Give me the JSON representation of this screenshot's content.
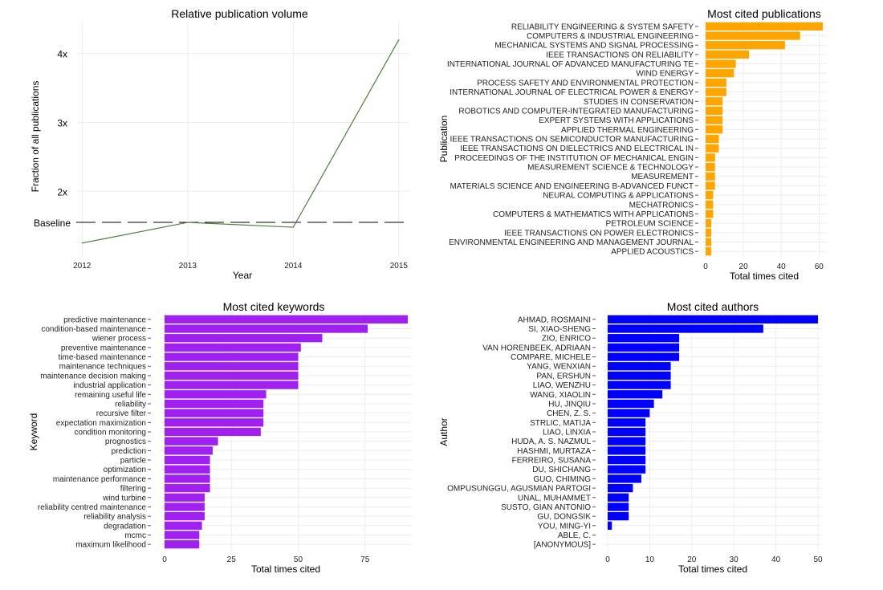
{
  "chart_data": [
    {
      "type": "line",
      "title": "Relative publication volume",
      "xlabel": "Year",
      "ylabel": "Fraction of all publications",
      "x": [
        2012,
        2013,
        2014,
        2015
      ],
      "y": [
        1.25,
        1.55,
        1.48,
        4.2
      ],
      "xlim": [
        2011.96,
        2015.1
      ],
      "ylim": [
        1.05,
        4.45
      ],
      "ytick_values": [
        2,
        3,
        4
      ],
      "ytick_labels": [
        "2x",
        "3x",
        "4x"
      ],
      "baseline": {
        "label": "Baseline",
        "value": 1.55
      },
      "colors": {
        "line": "#4a7f3a",
        "baseline": "#000000"
      }
    },
    {
      "type": "bar",
      "orientation": "horizontal",
      "title": "Most cited publications",
      "xlabel": "Total times cited",
      "ylabel": "Publication",
      "categories": [
        "RELIABILITY ENGINEERING & SYSTEM SAFETY",
        "COMPUTERS & INDUSTRIAL ENGINEERING",
        "MECHANICAL SYSTEMS AND SIGNAL PROCESSING",
        "IEEE TRANSACTIONS ON RELIABILITY",
        "INTERNATIONAL JOURNAL OF ADVANCED MANUFACTURING TE",
        "WIND ENERGY",
        "PROCESS SAFETY AND ENVIRONMENTAL PROTECTION",
        "INTERNATIONAL JOURNAL OF ELECTRICAL POWER & ENERGY",
        "STUDIES IN CONSERVATION",
        "ROBOTICS AND COMPUTER-INTEGRATED MANUFACTURING",
        "EXPERT SYSTEMS WITH APPLICATIONS",
        "APPLIED THERMAL ENGINEERING",
        "IEEE TRANSACTIONS ON SEMICONDUCTOR MANUFACTURING",
        "IEEE TRANSACTIONS ON DIELECTRICS AND ELECTRICAL IN",
        "PROCEEDINGS OF THE INSTITUTION OF MECHANICAL ENGIN",
        "MEASUREMENT SCIENCE & TECHNOLOGY",
        "MEASUREMENT",
        "MATERIALS SCIENCE AND ENGINEERING B-ADVANCED FUNCT",
        "NEURAL COMPUTING & APPLICATIONS",
        "MECHATRONICS",
        "COMPUTERS & MATHEMATICS WITH APPLICATIONS",
        "PETROLEUM SCIENCE",
        "IEEE TRANSACTIONS ON POWER ELECTRONICS",
        "ENVIRONMENTAL ENGINEERING AND MANAGEMENT JOURNAL",
        "APPLIED ACOUSTICS"
      ],
      "values": [
        62,
        50,
        42,
        23,
        16,
        15,
        11,
        11,
        9,
        9,
        9,
        9,
        7,
        7,
        5,
        5,
        5,
        5,
        4,
        4,
        4,
        3,
        3,
        3,
        3
      ],
      "xlim": [
        0,
        62
      ],
      "xticks": [
        0,
        20,
        40,
        60
      ],
      "colors": {
        "bar": "#ffa500"
      }
    },
    {
      "type": "bar",
      "orientation": "horizontal",
      "title": "Most cited keywords",
      "xlabel": "Total times cited",
      "ylabel": "Keyword",
      "categories": [
        "predictive maintenance",
        "condition-based maintenance",
        "wiener process",
        "preventive maintenance",
        "time-based maintenance",
        "maintenance techniques",
        "maintenance decision making",
        "industrial application",
        "remaining useful life",
        "reliability",
        "recursive filter",
        "expectation maximization",
        "condition monitoring",
        "prognostics",
        "prediction",
        "particle",
        "optimization",
        "maintenance performance",
        "filtering",
        "wind turbine",
        "reliability centred maintenance",
        "reliability analysis",
        "degradation",
        "mcmc",
        "maximum likelihood"
      ],
      "values": [
        91,
        76,
        59,
        51,
        50,
        50,
        50,
        50,
        38,
        37,
        37,
        37,
        36,
        20,
        18,
        17,
        17,
        17,
        17,
        15,
        15,
        15,
        14,
        13,
        13
      ],
      "xlim": [
        0,
        91
      ],
      "xticks": [
        0,
        25,
        50,
        75
      ],
      "colors": {
        "bar": "#a020f0"
      }
    },
    {
      "type": "bar",
      "orientation": "horizontal",
      "title": "Most cited authors",
      "xlabel": "Total times cited",
      "ylabel": "Author",
      "categories": [
        "AHMAD, ROSMAINI",
        "SI, XIAO-SHENG",
        "ZIO, ENRICO",
        "VAN HORENBEEK, ADRIAAN",
        "COMPARE, MICHELE",
        "YANG, WENXIAN",
        "PAN, ERSHUN",
        "LIAO, WENZHU",
        "WANG, XIAOLIN",
        "HU, JINQIU",
        "CHEN, Z. S.",
        "STRLIC, MATIJA",
        "LIAO, LINXIA",
        "HUDA, A. S. NAZMUL",
        "HASHMI, MURTAZA",
        "FERREIRO, SUSANA",
        "DU, SHICHANG",
        "GUO, CHIMING",
        "OMPUSUNGGU, AGUSMIAN PARTOGI",
        "UNAL, MUHAMMET",
        "SUSTO, GIAN ANTONIO",
        "GU, DONGSIK",
        "YOU, MING-YI",
        "ABLE, C.",
        "[ANONYMOUS]"
      ],
      "values": [
        50,
        37,
        17,
        17,
        17,
        15,
        15,
        15,
        13,
        11,
        10,
        9,
        9,
        9,
        9,
        9,
        9,
        8,
        6,
        5,
        5,
        5,
        1,
        0,
        0
      ],
      "xlim": [
        0,
        50
      ],
      "xticks": [
        0,
        10,
        20,
        30,
        40,
        50
      ],
      "colors": {
        "bar": "#0000ff"
      }
    }
  ]
}
